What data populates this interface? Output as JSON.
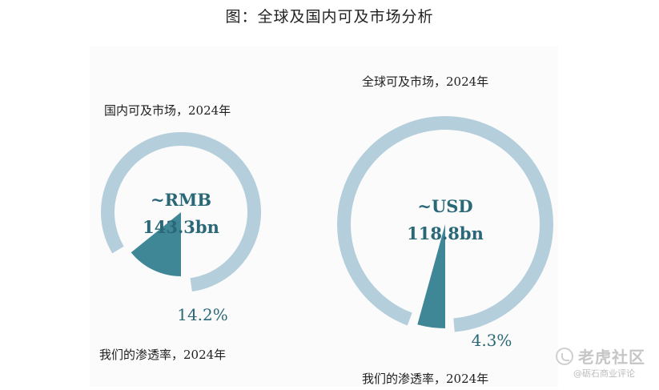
{
  "figure_title": "图：全球及国内可及市场分析",
  "colors": {
    "ring": "#b5cedb",
    "wedge": "#3f8797",
    "center_text": "#2a6878"
  },
  "watermark": {
    "main": "老虎社区",
    "sub": "@砺石商业评论",
    "icon": "tiger-community-logo-icon"
  },
  "chart_data": [
    {
      "type": "pie",
      "title": "国内可及市场，2024年",
      "center_label_line1": "~RMB",
      "center_label_line2": "143.3bn",
      "slices": [
        {
          "label": "我们的渗透率，2024年",
          "value": 14.2,
          "value_label": "14.2%"
        },
        {
          "label": "",
          "value": 85.8
        }
      ],
      "footer": "我们的渗透率，2024年"
    },
    {
      "type": "pie",
      "title": "全球可及市场，2024年",
      "center_label_line1": "~USD",
      "center_label_line2": "118.8bn",
      "slices": [
        {
          "label": "我们的渗透率，2024年",
          "value": 4.3,
          "value_label": "4.3%"
        },
        {
          "label": "",
          "value": 95.7
        }
      ],
      "footer": "我们的渗透率，2024年"
    }
  ]
}
